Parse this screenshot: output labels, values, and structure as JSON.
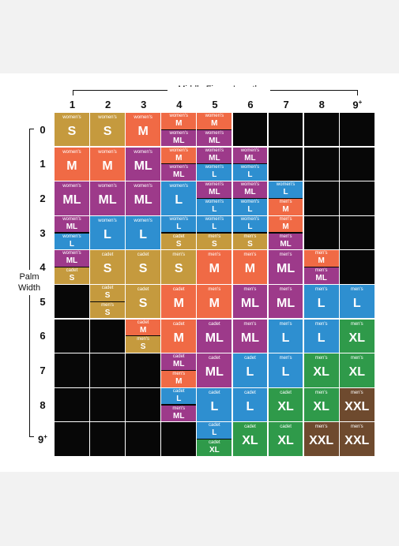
{
  "header": {
    "title": "Middle Finger Length"
  },
  "side": {
    "title_line1": "Palm",
    "title_line2": "Width"
  },
  "colors": {
    "women_s": "#c59a3e",
    "women_m": "#f06a45",
    "women_ml": "#9d3a8a",
    "women_l": "#2e8fd0",
    "xl": "#2f9a4a",
    "xxl": "#6e4a2e",
    "empty": "#070707"
  },
  "columns": [
    "1",
    "2",
    "3",
    "4",
    "5",
    "6",
    "7",
    "8",
    "9+"
  ],
  "rows": [
    "0",
    "1",
    "2",
    "3",
    "4",
    "5",
    "6",
    "7",
    "8",
    "9+"
  ],
  "grid": [
    [
      [
        {
          "label": "women's",
          "size": "S",
          "c": "women_s"
        }
      ],
      [
        {
          "label": "women's",
          "size": "S",
          "c": "women_s"
        }
      ],
      [
        {
          "label": "women's",
          "size": "M",
          "c": "women_m"
        }
      ],
      [
        {
          "label": "women's",
          "size": "M",
          "c": "women_m"
        },
        {
          "label": "women's",
          "size": "ML",
          "c": "women_ml"
        }
      ],
      [
        {
          "label": "women's",
          "size": "M",
          "c": "women_m"
        },
        {
          "label": "women's",
          "size": "ML",
          "c": "women_ml"
        }
      ],
      [],
      [],
      [],
      []
    ],
    [
      [
        {
          "label": "women's",
          "size": "M",
          "c": "women_m"
        }
      ],
      [
        {
          "label": "women's",
          "size": "M",
          "c": "women_m"
        }
      ],
      [
        {
          "label": "women's",
          "size": "ML",
          "c": "women_ml"
        }
      ],
      [
        {
          "label": "women's",
          "size": "M",
          "c": "women_m"
        },
        {
          "label": "women's",
          "size": "ML",
          "c": "women_ml"
        }
      ],
      [
        {
          "label": "women's",
          "size": "ML",
          "c": "women_ml"
        },
        {
          "label": "women's",
          "size": "L",
          "c": "women_l"
        }
      ],
      [
        {
          "label": "women's",
          "size": "ML",
          "c": "women_ml"
        },
        {
          "label": "women's",
          "size": "L",
          "c": "women_l"
        }
      ],
      [],
      [],
      []
    ],
    [
      [
        {
          "label": "women's",
          "size": "ML",
          "c": "women_ml"
        }
      ],
      [
        {
          "label": "women's",
          "size": "ML",
          "c": "women_ml"
        }
      ],
      [
        {
          "label": "women's",
          "size": "ML",
          "c": "women_ml"
        }
      ],
      [
        {
          "label": "women's",
          "size": "L",
          "c": "women_l"
        }
      ],
      [
        {
          "label": "women's",
          "size": "ML",
          "c": "women_ml"
        },
        {
          "label": "women's",
          "size": "L",
          "c": "women_l"
        }
      ],
      [
        {
          "label": "women's",
          "size": "ML",
          "c": "women_ml"
        },
        {
          "label": "women's",
          "size": "L",
          "c": "women_l"
        }
      ],
      [
        {
          "label": "women's",
          "size": "L",
          "c": "women_l"
        },
        {
          "label": "men's",
          "size": "M",
          "c": "women_m"
        }
      ],
      [],
      []
    ],
    [
      [
        {
          "label": "women's",
          "size": "ML",
          "c": "women_ml"
        },
        {
          "label": "women's",
          "size": "L",
          "c": "women_l"
        }
      ],
      [
        {
          "label": "women's",
          "size": "L",
          "c": "women_l"
        }
      ],
      [
        {
          "label": "women's",
          "size": "L",
          "c": "women_l"
        }
      ],
      [
        {
          "label": "women's",
          "size": "L",
          "c": "women_l"
        },
        {
          "label": "cadet",
          "size": "S",
          "c": "women_s"
        }
      ],
      [
        {
          "label": "women's",
          "size": "L",
          "c": "women_l"
        },
        {
          "label": "men's",
          "size": "S",
          "c": "women_s"
        }
      ],
      [
        {
          "label": "women's",
          "size": "L",
          "c": "women_l"
        },
        {
          "label": "men's",
          "size": "S",
          "c": "women_s"
        }
      ],
      [
        {
          "label": "men's",
          "size": "M",
          "c": "women_m"
        },
        {
          "label": "men's",
          "size": "ML",
          "c": "women_ml"
        }
      ],
      [],
      []
    ],
    [
      [
        {
          "label": "women's",
          "size": "ML",
          "c": "women_ml"
        },
        {
          "label": "cadet",
          "size": "S",
          "c": "women_s"
        }
      ],
      [
        {
          "label": "cadet",
          "size": "S",
          "c": "women_s"
        }
      ],
      [
        {
          "label": "cadet",
          "size": "S",
          "c": "women_s"
        }
      ],
      [
        {
          "label": "men's",
          "size": "S",
          "c": "women_s"
        }
      ],
      [
        {
          "label": "men's",
          "size": "M",
          "c": "women_m"
        }
      ],
      [
        {
          "label": "men's",
          "size": "M",
          "c": "women_m"
        }
      ],
      [
        {
          "label": "men's",
          "size": "ML",
          "c": "women_ml"
        }
      ],
      [
        {
          "label": "men's",
          "size": "M",
          "c": "women_m"
        },
        {
          "label": "men's",
          "size": "ML",
          "c": "women_ml"
        }
      ],
      []
    ],
    [
      [],
      [
        {
          "label": "cadet",
          "size": "S",
          "c": "women_s"
        },
        {
          "label": "men's",
          "size": "S",
          "c": "women_s"
        }
      ],
      [
        {
          "label": "cadet",
          "size": "S",
          "c": "women_s"
        }
      ],
      [
        {
          "label": "cadet",
          "size": "M",
          "c": "women_m"
        }
      ],
      [
        {
          "label": "men's",
          "size": "M",
          "c": "women_m"
        }
      ],
      [
        {
          "label": "men's",
          "size": "ML",
          "c": "women_ml"
        }
      ],
      [
        {
          "label": "men's",
          "size": "ML",
          "c": "women_ml"
        }
      ],
      [
        {
          "label": "men's",
          "size": "L",
          "c": "women_l"
        }
      ],
      [
        {
          "label": "men's",
          "size": "L",
          "c": "women_l"
        }
      ]
    ],
    [
      [],
      [],
      [
        {
          "label": "cadet",
          "size": "M",
          "c": "women_m"
        },
        {
          "label": "men's",
          "size": "S",
          "c": "women_s"
        }
      ],
      [
        {
          "label": "cadet",
          "size": "M",
          "c": "women_m"
        }
      ],
      [
        {
          "label": "cadet",
          "size": "ML",
          "c": "women_ml"
        }
      ],
      [
        {
          "label": "men's",
          "size": "ML",
          "c": "women_ml"
        }
      ],
      [
        {
          "label": "men's",
          "size": "L",
          "c": "women_l"
        }
      ],
      [
        {
          "label": "men's",
          "size": "L",
          "c": "women_l"
        }
      ],
      [
        {
          "label": "men's",
          "size": "XL",
          "c": "xl"
        }
      ]
    ],
    [
      [],
      [],
      [],
      [
        {
          "label": "cadet",
          "size": "ML",
          "c": "women_ml"
        },
        {
          "label": "men's",
          "size": "M",
          "c": "women_m"
        }
      ],
      [
        {
          "label": "cadet",
          "size": "ML",
          "c": "women_ml"
        }
      ],
      [
        {
          "label": "cadet",
          "size": "L",
          "c": "women_l"
        }
      ],
      [
        {
          "label": "men's",
          "size": "L",
          "c": "women_l"
        }
      ],
      [
        {
          "label": "men's",
          "size": "XL",
          "c": "xl"
        }
      ],
      [
        {
          "label": "men's",
          "size": "XL",
          "c": "xl"
        }
      ]
    ],
    [
      [],
      [],
      [],
      [
        {
          "label": "cadet",
          "size": "L",
          "c": "women_l"
        },
        {
          "label": "men's",
          "size": "ML",
          "c": "women_ml"
        }
      ],
      [
        {
          "label": "cadet",
          "size": "L",
          "c": "women_l"
        }
      ],
      [
        {
          "label": "cadet",
          "size": "L",
          "c": "women_l"
        }
      ],
      [
        {
          "label": "cadet",
          "size": "XL",
          "c": "xl"
        }
      ],
      [
        {
          "label": "men's",
          "size": "XL",
          "c": "xl"
        }
      ],
      [
        {
          "label": "men's",
          "size": "XXL",
          "c": "xxl"
        }
      ]
    ],
    [
      [],
      [],
      [],
      [],
      [
        {
          "label": "cadet",
          "size": "L",
          "c": "women_l"
        },
        {
          "label": "cadet",
          "size": "XL",
          "c": "xl"
        }
      ],
      [
        {
          "label": "cadet",
          "size": "XL",
          "c": "xl"
        }
      ],
      [
        {
          "label": "cadet",
          "size": "XL",
          "c": "xl"
        }
      ],
      [
        {
          "label": "men's",
          "size": "XXL",
          "c": "xxl"
        }
      ],
      [
        {
          "label": "men's",
          "size": "XXL",
          "c": "xxl"
        }
      ]
    ]
  ]
}
